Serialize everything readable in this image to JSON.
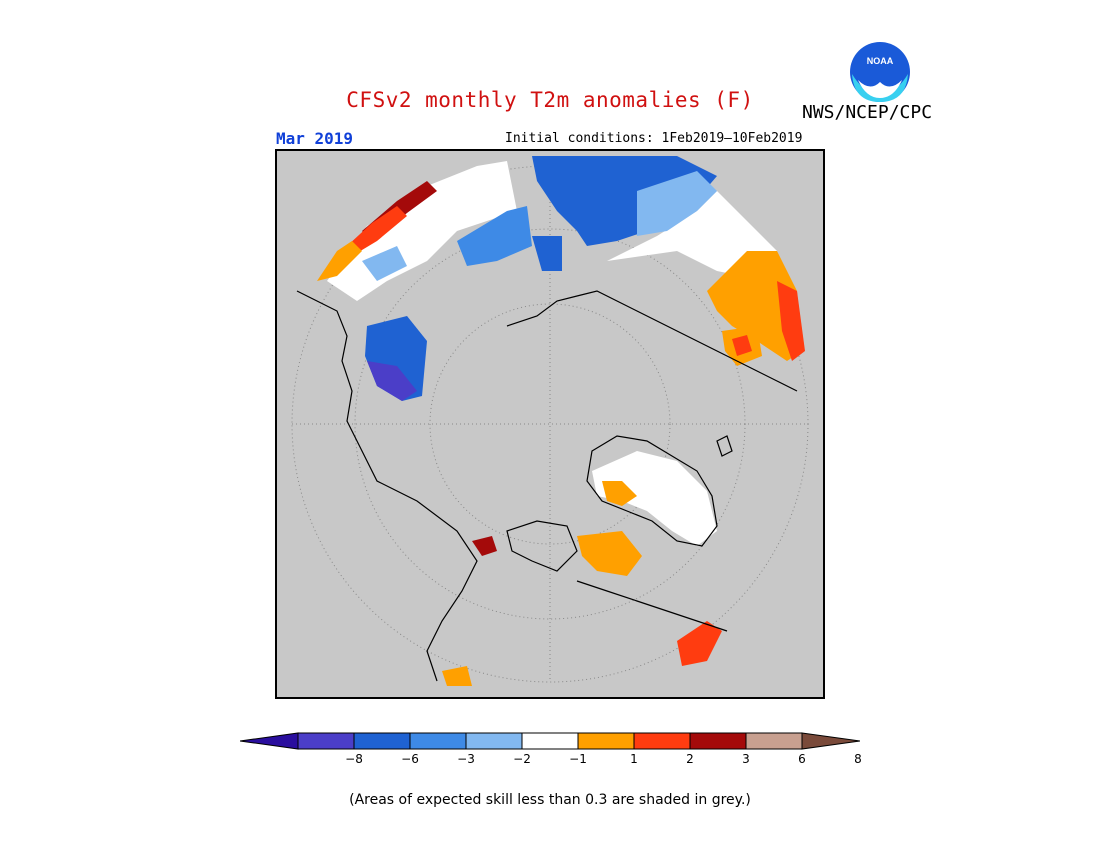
{
  "header": {
    "title": "CFSv2 monthly T2m anomalies (F)",
    "agency": "NWS/NCEP/CPC",
    "month": "Mar 2019",
    "initial_conditions": "Initial conditions: 1Feb2019—10Feb2019",
    "logo_text": "NOAA"
  },
  "legend": {
    "colors": [
      "#2a0e9e",
      "#4b3ec8",
      "#1f62d2",
      "#3e8ae6",
      "#82b8f0",
      "#ffffff",
      "#ffa000",
      "#ff3c10",
      "#a40a0a",
      "#c8a090",
      "#7a4a3a"
    ],
    "ticks": [
      "−8",
      "−6",
      "−3",
      "−2",
      "−1",
      "1",
      "2",
      "3",
      "6",
      "8"
    ]
  },
  "map": {
    "background": "#c8c8c8",
    "projection": "north-polar-stereographic"
  },
  "footnote": "(Areas of expected skill less than 0.3 are shaded in grey.)"
}
